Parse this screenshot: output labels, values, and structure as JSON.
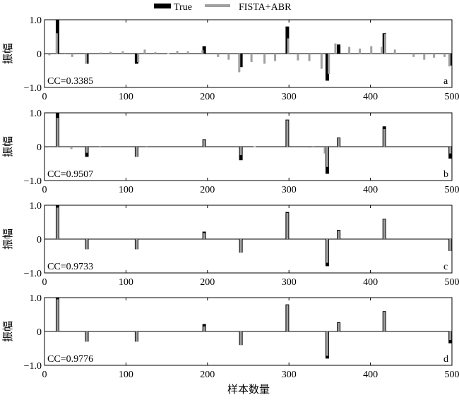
{
  "chart_data": {
    "type": "bar",
    "legend": {
      "placement": "top",
      "entries": [
        {
          "name": "True",
          "color": "#000000"
        },
        {
          "name": "FISTA+ABR",
          "color": "#a0a0a0"
        }
      ]
    },
    "xlabel": "样本数量",
    "ylabel": "振幅",
    "xlim": [
      0,
      500
    ],
    "ylim": [
      -1.0,
      1.0
    ],
    "xticks": [
      "0",
      "100",
      "200",
      "300",
      "400",
      "500"
    ],
    "yticks": [
      "1.0",
      "0",
      "−1.0"
    ],
    "true_spikes": {
      "x": [
        16,
        52,
        113,
        196,
        241,
        298,
        347,
        361,
        417,
        498
      ],
      "y": [
        1.0,
        -0.3,
        -0.3,
        0.22,
        -0.4,
        0.8,
        -0.8,
        0.27,
        0.6,
        -0.35
      ]
    },
    "panels": [
      {
        "label": "a",
        "cc": "CC=0.3385",
        "estimate": {
          "x": [
            6,
            15,
            25,
            34,
            51,
            69,
            81,
            96,
            115,
            123,
            136,
            152,
            163,
            176,
            194,
            213,
            226,
            239,
            254,
            270,
            283,
            299,
            311,
            325,
            340,
            349,
            357,
            374,
            387,
            401,
            414,
            418,
            430,
            453,
            466,
            478,
            491,
            497
          ],
          "y": [
            -0.05,
            0.6,
            -0.02,
            -0.1,
            -0.3,
            0.03,
            0.05,
            0.07,
            -0.25,
            0.12,
            0.04,
            0.01,
            0.08,
            0.07,
            0.1,
            -0.1,
            -0.18,
            -0.55,
            -0.25,
            -0.3,
            -0.22,
            0.45,
            -0.2,
            -0.22,
            -0.45,
            -0.6,
            0.3,
            0.2,
            0.15,
            0.22,
            0.2,
            0.58,
            0.12,
            -0.1,
            -0.18,
            -0.12,
            -0.1,
            -0.38
          ]
        }
      },
      {
        "label": "b",
        "cc": "CC=0.9507",
        "estimate": {
          "x": [
            3,
            16,
            33,
            52,
            68,
            113,
            125,
            196,
            241,
            258,
            298,
            325,
            330,
            344,
            347,
            361,
            417,
            498
          ],
          "y": [
            -0.03,
            0.85,
            -0.07,
            -0.18,
            0.02,
            -0.3,
            0.02,
            0.2,
            -0.25,
            0.01,
            0.78,
            -0.03,
            0.02,
            -0.2,
            -0.6,
            0.25,
            0.52,
            -0.2
          ]
        }
      },
      {
        "label": "c",
        "cc": "CC=0.9733",
        "estimate": {
          "x": [
            16,
            52,
            113,
            196,
            241,
            298,
            347,
            361,
            417,
            498
          ],
          "y": [
            0.93,
            -0.3,
            -0.3,
            0.18,
            -0.4,
            0.77,
            -0.7,
            0.25,
            0.58,
            -0.35
          ]
        }
      },
      {
        "label": "d",
        "cc": "CC=0.9776",
        "estimate": {
          "x": [
            16,
            52,
            113,
            196,
            241,
            298,
            347,
            361,
            417,
            498
          ],
          "y": [
            0.95,
            -0.3,
            -0.3,
            0.15,
            -0.4,
            0.78,
            -0.72,
            0.25,
            0.58,
            -0.25
          ]
        }
      }
    ]
  }
}
